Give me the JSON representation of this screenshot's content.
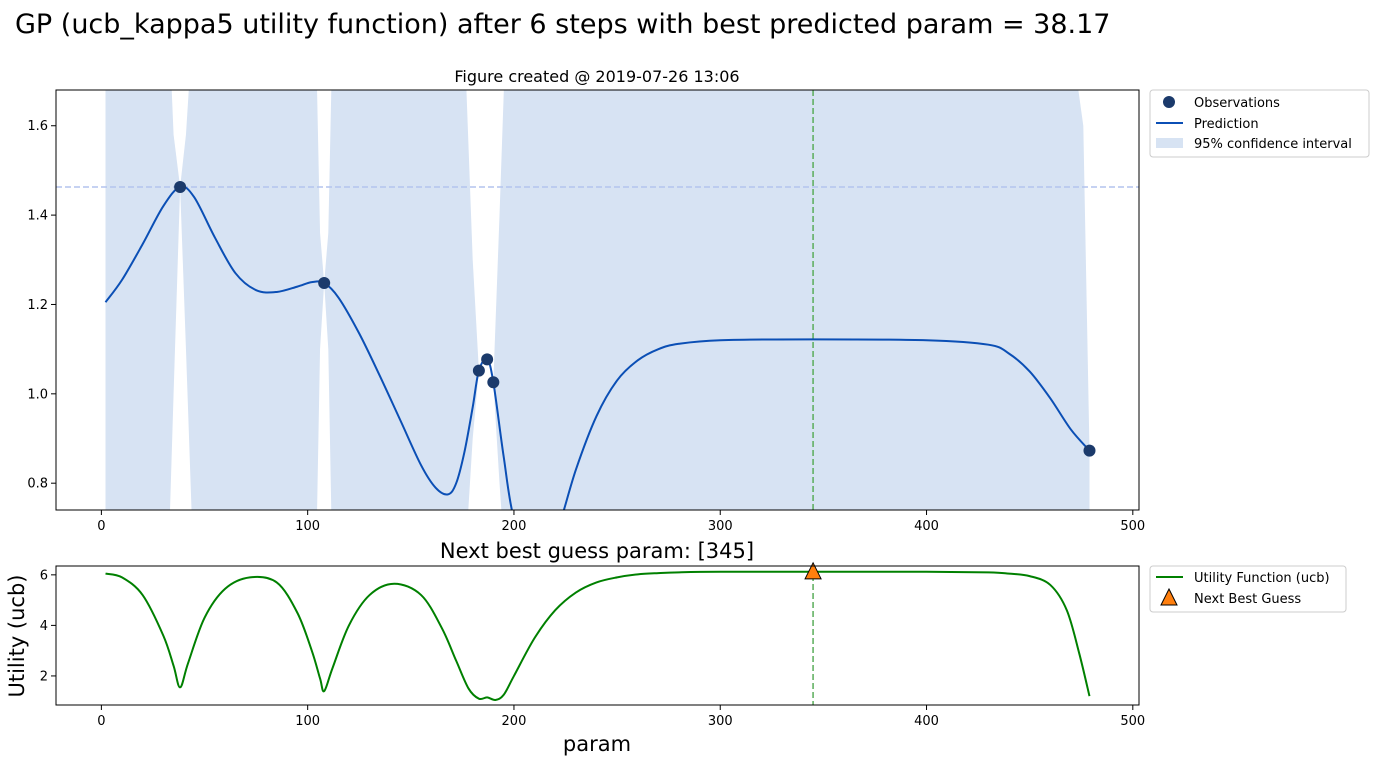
{
  "suptitle": "GP (ucb_kappa5 utility function) after 6 steps with best predicted param = 38.17",
  "chart_data": [
    {
      "type": "line",
      "title": "Figure created @ 2019-07-26 13:06",
      "xlabel": "",
      "ylabel": "",
      "xlim": [
        -22,
        503
      ],
      "ylim": [
        0.74,
        1.68
      ],
      "xticks": [
        0,
        100,
        200,
        300,
        400,
        500
      ],
      "yticks": [
        0.8,
        1.0,
        1.2,
        1.4,
        1.6
      ],
      "xtick_labels": [
        "0",
        "100",
        "200",
        "300",
        "400",
        "500"
      ],
      "ytick_labels": [
        "0.8",
        "1.0",
        "1.2",
        "1.4",
        "1.6"
      ],
      "grid": false,
      "legend_placement": "outside-top-right",
      "colors": {
        "observations": "#1b3a6b",
        "prediction": "#0b4fb5",
        "confidence": "#d7e3f3",
        "best_line": "#b3c4ee",
        "next_line": "#5aad5a"
      },
      "legend": [
        "Observations",
        "Prediction",
        "95% confidence interval"
      ],
      "observations": {
        "x": [
          38.17,
          108,
          183,
          187,
          190,
          479
        ],
        "y": [
          1.463,
          1.248,
          1.052,
          1.077,
          1.026,
          0.873
        ]
      },
      "prediction": {
        "x": [
          2,
          10,
          20,
          30,
          38.17,
          45,
          55,
          65,
          75,
          85,
          95,
          102,
          108,
          115,
          125,
          135,
          145,
          155,
          162,
          168,
          172,
          176,
          180,
          183,
          187,
          190,
          195,
          200,
          210,
          220,
          230,
          240,
          250,
          260,
          270,
          280,
          300,
          345,
          400,
          430,
          440,
          450,
          460,
          470,
          479
        ],
        "y": [
          1.205,
          1.255,
          1.335,
          1.42,
          1.463,
          1.44,
          1.35,
          1.27,
          1.232,
          1.228,
          1.24,
          1.25,
          1.248,
          1.215,
          1.135,
          1.04,
          0.94,
          0.84,
          0.79,
          0.775,
          0.8,
          0.87,
          0.97,
          1.052,
          1.077,
          1.026,
          0.86,
          0.72,
          0.6,
          0.68,
          0.83,
          0.95,
          1.03,
          1.075,
          1.1,
          1.112,
          1.12,
          1.122,
          1.12,
          1.11,
          1.09,
          1.05,
          0.99,
          0.92,
          0.873
        ]
      },
      "confidence_interval": {
        "x": [
          2,
          20,
          30,
          33,
          35,
          38.17,
          41,
          44,
          50,
          100,
          104,
          106,
          108,
          110,
          112,
          116,
          130,
          150,
          160,
          170,
          176,
          180,
          183,
          187,
          190,
          193,
          196,
          200,
          210,
          300,
          345,
          400,
          460,
          470,
          476,
          479
        ],
        "lower": [
          0.6,
          0.6,
          0.6,
          0.7,
          1.0,
          1.463,
          1.1,
          0.7,
          0.6,
          0.6,
          0.6,
          1.1,
          1.248,
          1.1,
          0.6,
          0.6,
          0.6,
          0.6,
          0.6,
          0.6,
          0.6,
          0.9,
          1.052,
          1.077,
          1.026,
          0.8,
          0.6,
          0.6,
          0.6,
          0.6,
          0.6,
          0.6,
          0.6,
          0.6,
          0.6,
          0.6
        ],
        "upper": [
          1.8,
          1.8,
          1.8,
          1.8,
          1.58,
          1.463,
          1.58,
          1.8,
          1.8,
          1.8,
          1.8,
          1.36,
          1.248,
          1.36,
          1.8,
          1.8,
          1.8,
          1.8,
          1.8,
          1.8,
          1.8,
          1.3,
          1.052,
          1.077,
          1.026,
          1.4,
          1.8,
          1.8,
          1.8,
          1.8,
          1.8,
          1.8,
          1.8,
          1.8,
          1.6,
          0.873
        ]
      },
      "hlines": [
        1.463
      ],
      "vlines": [
        345
      ]
    },
    {
      "type": "line",
      "title": "Next best guess param: [345]",
      "xlabel": "param",
      "ylabel": "Utility (ucb)",
      "xlim": [
        -22,
        503
      ],
      "ylim": [
        0.85,
        6.35
      ],
      "xticks": [
        0,
        100,
        200,
        300,
        400,
        500
      ],
      "yticks": [
        2,
        4,
        6
      ],
      "xtick_labels": [
        "0",
        "100",
        "200",
        "300",
        "400",
        "500"
      ],
      "ytick_labels": [
        "2",
        "4",
        "6"
      ],
      "grid": false,
      "legend_placement": "outside-top-right",
      "colors": {
        "utility": "#008000",
        "next_guess": "#ff7f0e",
        "next_line": "#5aad5a"
      },
      "legend": [
        "Utility Function (ucb)",
        "Next Best Guess"
      ],
      "utility": {
        "x": [
          2,
          10,
          20,
          30,
          35,
          38.17,
          42,
          50,
          60,
          72,
          85,
          95,
          102,
          106,
          108,
          112,
          120,
          130,
          142,
          155,
          165,
          172,
          178,
          183,
          187,
          191,
          195,
          200,
          210,
          220,
          230,
          240,
          250,
          260,
          270,
          280,
          300,
          345,
          400,
          430,
          440,
          450,
          460,
          468,
          474,
          479
        ],
        "y": [
          6.05,
          5.9,
          5.2,
          3.6,
          2.4,
          1.55,
          2.5,
          4.3,
          5.45,
          5.9,
          5.7,
          4.5,
          3.0,
          1.9,
          1.4,
          2.3,
          4.0,
          5.2,
          5.65,
          5.2,
          3.9,
          2.6,
          1.5,
          1.1,
          1.15,
          1.05,
          1.25,
          2.0,
          3.5,
          4.6,
          5.3,
          5.7,
          5.9,
          6.02,
          6.07,
          6.1,
          6.12,
          6.12,
          6.12,
          6.1,
          6.05,
          5.95,
          5.6,
          4.6,
          2.9,
          1.2
        ]
      },
      "next_best_guess": {
        "x": 345,
        "y": 6.12
      },
      "vlines": [
        345
      ]
    }
  ]
}
